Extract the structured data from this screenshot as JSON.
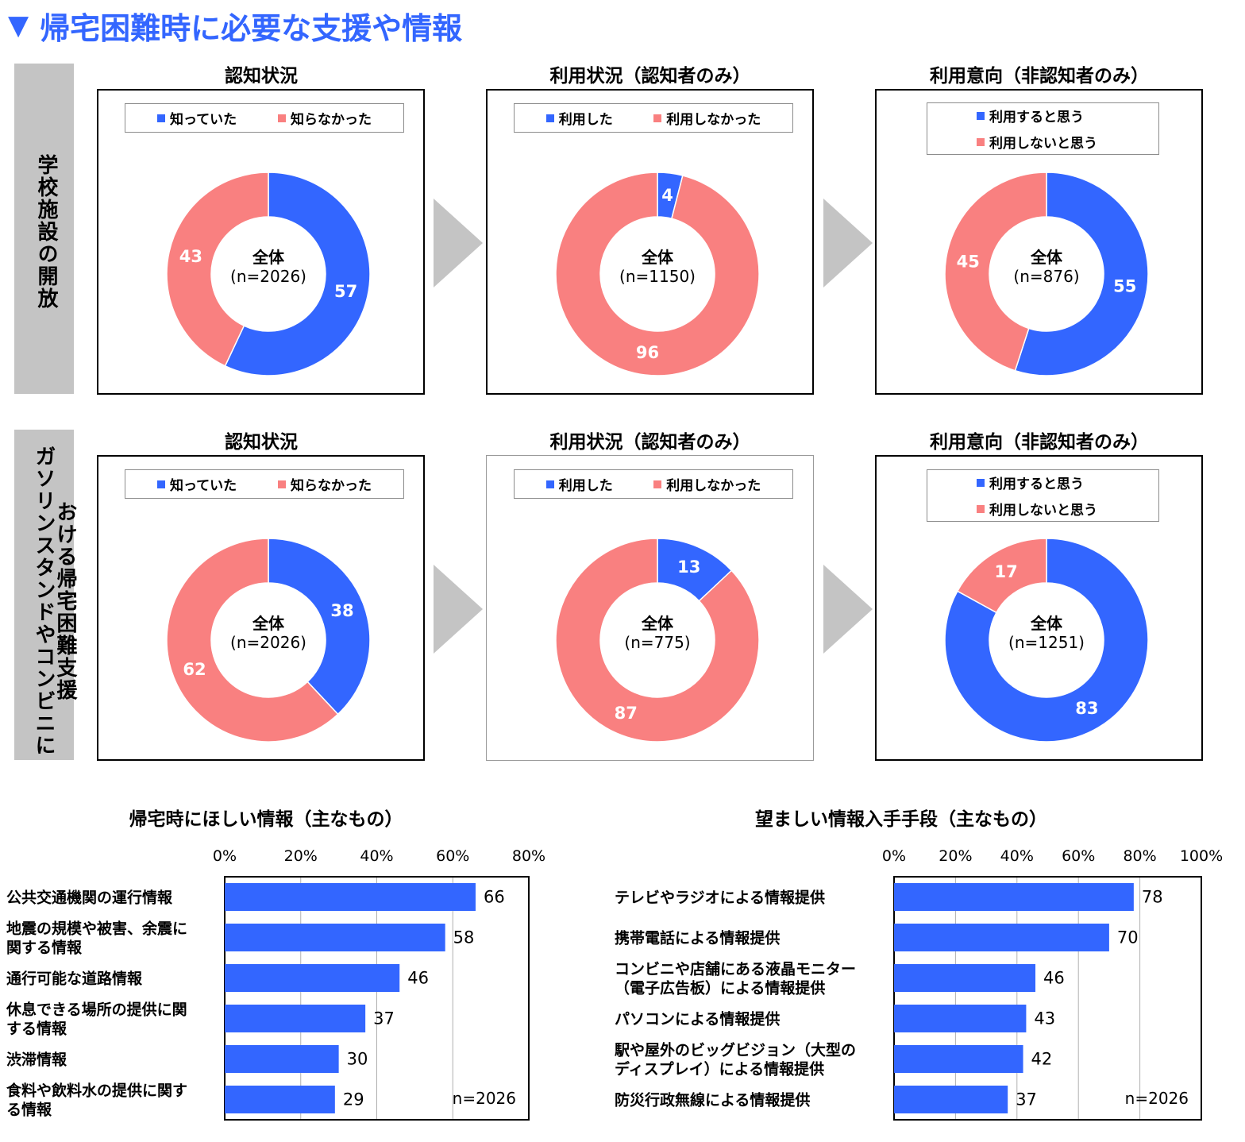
{
  "page_title": "帰宅困難時に必要な支援や情報",
  "title_marker": "▼",
  "colors": {
    "blue": "#3366ff",
    "pink": "#f98080",
    "gray": "#c4c4c4",
    "accent": "#3366ff"
  },
  "row_labels": [
    {
      "lines": [
        "学校施設の開放"
      ]
    },
    {
      "lines": [
        "ガソリンスタンドやコンビニに",
        "おける帰宅困難支援"
      ]
    }
  ],
  "panel_titles": {
    "awareness": "認知状況",
    "usage": "利用状況（認知者のみ）",
    "intent": "利用意向（非認知者のみ）"
  },
  "legends": {
    "awareness": [
      "知っていた",
      "知らなかった"
    ],
    "usage": [
      "利用した",
      "利用しなかった"
    ],
    "intent": [
      "利用すると思う",
      "利用しないと思う"
    ]
  },
  "center_label": "全体",
  "chart_data": [
    {
      "type": "pie",
      "subtype": "donut",
      "row": "学校施設の開放",
      "title": "認知状況",
      "center": "全体",
      "n_label": "(n=2026)",
      "labels": [
        "知っていた",
        "知らなかった"
      ],
      "values": [
        57,
        43
      ]
    },
    {
      "type": "pie",
      "subtype": "donut",
      "row": "学校施設の開放",
      "title": "利用状況（認知者のみ）",
      "center": "全体",
      "n_label": "(n=1150)",
      "labels": [
        "利用した",
        "利用しなかった"
      ],
      "values": [
        4,
        96
      ]
    },
    {
      "type": "pie",
      "subtype": "donut",
      "row": "学校施設の開放",
      "title": "利用意向（非認知者のみ）",
      "center": "全体",
      "n_label": "(n=876)",
      "labels": [
        "利用すると思う",
        "利用しないと思う"
      ],
      "values": [
        55,
        45
      ]
    },
    {
      "type": "pie",
      "subtype": "donut",
      "row": "ガソリンスタンドやコンビニにおける帰宅困難支援",
      "title": "認知状況",
      "center": "全体",
      "n_label": "(n=2026)",
      "labels": [
        "知っていた",
        "知らなかった"
      ],
      "values": [
        38,
        62
      ]
    },
    {
      "type": "pie",
      "subtype": "donut",
      "row": "ガソリンスタンドやコンビニにおける帰宅困難支援",
      "title": "利用状況（認知者のみ）",
      "center": "全体",
      "n_label": "(n=775)",
      "labels": [
        "利用した",
        "利用しなかった"
      ],
      "values": [
        13,
        87
      ]
    },
    {
      "type": "pie",
      "subtype": "donut",
      "row": "ガソリンスタンドやコンビニにおける帰宅困難支援",
      "title": "利用意向（非認知者のみ）",
      "center": "全体",
      "n_label": "(n=1251)",
      "labels": [
        "利用すると思う",
        "利用しないと思う"
      ],
      "values": [
        83,
        17
      ]
    },
    {
      "type": "bar",
      "orientation": "horizontal",
      "title": "帰宅時にほしい情報（主なもの）",
      "categories": [
        [
          "公共交通機関の運行情報"
        ],
        [
          "地震の規模や被害、余震に",
          "関する情報"
        ],
        [
          "通行可能な道路情報"
        ],
        [
          "休息できる場所の提供に関",
          "する情報"
        ],
        [
          "渋滞情報"
        ],
        [
          "食料や飲料水の提供に関す",
          "る情報"
        ]
      ],
      "values": [
        66,
        58,
        46,
        37,
        30,
        29
      ],
      "xlim": [
        0,
        80
      ],
      "xticks": [
        "0%",
        "20%",
        "40%",
        "60%",
        "80%"
      ],
      "n_label": "n=2026",
      "grid": true
    },
    {
      "type": "bar",
      "orientation": "horizontal",
      "title": "望ましい情報入手手段（主なもの）",
      "categories": [
        [
          "テレビやラジオによる情報提供"
        ],
        [
          "携帯電話による情報提供"
        ],
        [
          "コンビニや店舗にある液晶モニター",
          "（電子広告板）による情報提供"
        ],
        [
          "パソコンによる情報提供"
        ],
        [
          "駅や屋外のビッグビジョン（大型の",
          "ディスプレイ）による情報提供"
        ],
        [
          "防災行政無線による情報提供"
        ]
      ],
      "values": [
        78,
        70,
        46,
        43,
        42,
        37
      ],
      "xlim": [
        0,
        100
      ],
      "xticks": [
        "0%",
        "20%",
        "40%",
        "60%",
        "80%",
        "100%"
      ],
      "n_label": "n=2026",
      "grid": true
    }
  ]
}
